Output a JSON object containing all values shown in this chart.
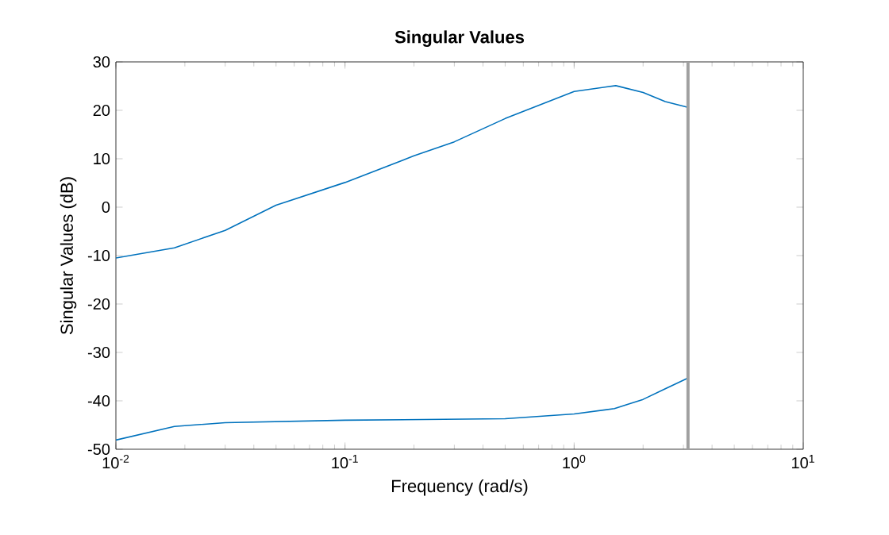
{
  "chart_data": {
    "type": "line",
    "title": "Singular Values",
    "xlabel": "Frequency (rad/s)",
    "ylabel": "Singular Values (dB)",
    "log": "x",
    "xlim": [
      0.01,
      10
    ],
    "ylim": [
      -50,
      30
    ],
    "xticks": [
      {
        "value": 0.01,
        "label": "10$^{-2}$"
      },
      {
        "value": 0.1,
        "label": "10$^{-1}$"
      },
      {
        "value": 1,
        "label": "10$^{0}$"
      },
      {
        "value": 10,
        "label": "10$^{1}$"
      }
    ],
    "yticks": [
      -50,
      -40,
      -30,
      -20,
      -10,
      0,
      10,
      20,
      30
    ],
    "series": [
      {
        "color": "#0072bd",
        "x": [
          0.01,
          0.018,
          0.03,
          0.05,
          0.1,
          0.2,
          0.3,
          0.5,
          1,
          1.52,
          2,
          2.5,
          3.14
        ],
        "values": [
          -10.5,
          -8.4,
          -4.8,
          0.4,
          5.1,
          10.6,
          13.5,
          18.3,
          23.9,
          25.1,
          23.7,
          21.8,
          20.6
        ]
      },
      {
        "color": "#0072bd",
        "x": [
          0.01,
          0.018,
          0.03,
          0.1,
          0.5,
          1,
          1.5,
          2,
          2.5,
          3.14
        ],
        "values": [
          -48.1,
          -45.3,
          -44.5,
          -44,
          -43.7,
          -42.7,
          -41.6,
          -39.7,
          -37.5,
          -35.3
        ]
      }
    ],
    "ref_lines": [
      {
        "axis": "x",
        "value": 3.14,
        "color": "#a0a0a0"
      }
    ]
  }
}
